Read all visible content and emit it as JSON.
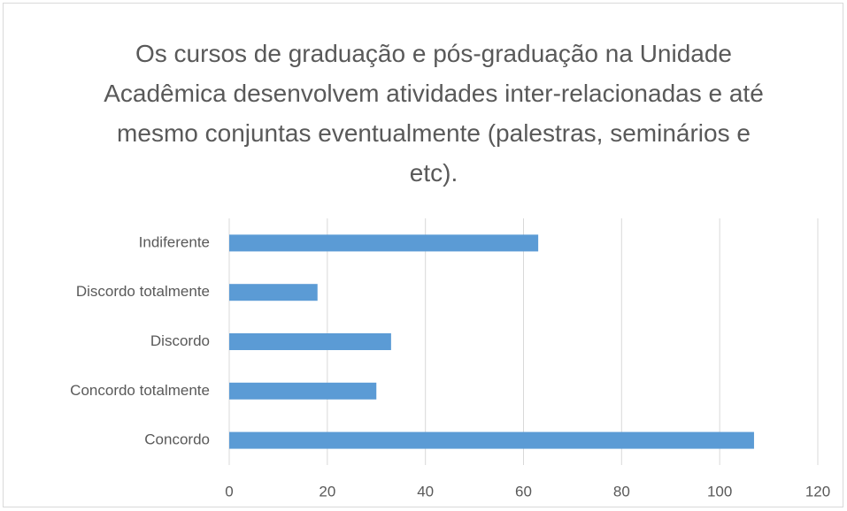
{
  "chart_data": {
    "type": "bar",
    "orientation": "horizontal",
    "title": "Os cursos de graduação e pós-graduação na Unidade Acadêmica desenvolvem atividades inter-relacionadas e até mesmo conjuntas eventualmente (palestras, seminários e etc).",
    "categories": [
      "Indiferente",
      "Discordo totalmente",
      "Discordo",
      "Concordo totalmente",
      "Concordo"
    ],
    "values": [
      63,
      18,
      33,
      30,
      107
    ],
    "color": "#5b9bd5",
    "xlim": [
      0,
      120
    ],
    "xticks": [
      0,
      20,
      40,
      60,
      80,
      100,
      120
    ],
    "grid": true
  }
}
